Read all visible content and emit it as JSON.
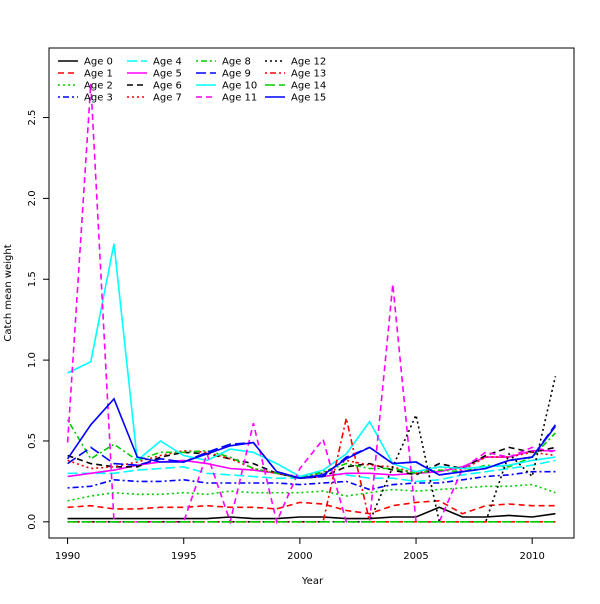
{
  "chart_data": {
    "type": "line",
    "title": "",
    "xlabel": "Year",
    "ylabel": "Catch mean weight",
    "xlim": [
      1989.2,
      2011.8
    ],
    "ylim": [
      -0.1,
      2.93
    ],
    "x_ticks": [
      1990,
      1995,
      2000,
      2005,
      2010
    ],
    "y_ticks": [
      0.0,
      0.5,
      1.0,
      1.5,
      2.0,
      2.5
    ],
    "y_tick_labels": [
      "0.0",
      "0.5",
      "1.0",
      "1.5",
      "2.0",
      "2.5"
    ],
    "grid": false,
    "legend": "top-left",
    "x": [
      1990,
      1991,
      1992,
      1993,
      1994,
      1995,
      1996,
      1997,
      1998,
      1999,
      2000,
      2001,
      2002,
      2003,
      2004,
      2005,
      2006,
      2007,
      2008,
      2009,
      2010,
      2011
    ],
    "series": [
      {
        "name": "Age 0",
        "color": "#000000",
        "dash": "solid",
        "values": [
          0.02,
          0.02,
          0.02,
          0.02,
          0.02,
          0.02,
          0.02,
          0.03,
          0.02,
          0.02,
          0.03,
          0.03,
          0.02,
          0.02,
          0.03,
          0.03,
          0.09,
          0.03,
          0.03,
          0.04,
          0.03,
          0.05
        ]
      },
      {
        "name": "Age 1",
        "color": "#ff0000",
        "dash": "dashed",
        "values": [
          0.09,
          0.1,
          0.08,
          0.08,
          0.09,
          0.09,
          0.1,
          0.09,
          0.09,
          0.08,
          0.12,
          0.11,
          0.07,
          0.05,
          0.1,
          0.12,
          0.13,
          0.05,
          0.1,
          0.11,
          0.1,
          0.1
        ]
      },
      {
        "name": "Age 2",
        "color": "#00cd00",
        "dash": "dotted",
        "values": [
          0.13,
          0.16,
          0.18,
          0.17,
          0.17,
          0.18,
          0.17,
          0.19,
          0.18,
          0.18,
          0.18,
          0.19,
          0.16,
          0.18,
          0.2,
          0.19,
          0.2,
          0.21,
          0.22,
          0.22,
          0.23,
          0.18
        ]
      },
      {
        "name": "Age 3",
        "color": "#0000ff",
        "dash": "dashdot",
        "values": [
          0.21,
          0.22,
          0.26,
          0.25,
          0.25,
          0.26,
          0.24,
          0.24,
          0.24,
          0.24,
          0.23,
          0.24,
          0.25,
          0.2,
          0.23,
          0.24,
          0.24,
          0.26,
          0.28,
          0.29,
          0.31,
          0.31
        ]
      },
      {
        "name": "Age 4",
        "color": "#00ffff",
        "dash": "longdash",
        "values": [
          0.3,
          0.3,
          0.3,
          0.32,
          0.33,
          0.34,
          0.3,
          0.29,
          0.28,
          0.27,
          0.27,
          0.3,
          0.29,
          0.27,
          0.27,
          0.25,
          0.26,
          0.29,
          0.31,
          0.33,
          0.35,
          0.38
        ]
      },
      {
        "name": "Age 5",
        "color": "#ff00ff",
        "dash": "solid",
        "values": [
          0.28,
          0.3,
          0.32,
          0.35,
          0.37,
          0.38,
          0.36,
          0.33,
          0.32,
          0.3,
          0.27,
          0.28,
          0.3,
          0.3,
          0.29,
          0.3,
          0.31,
          0.34,
          0.4,
          0.4,
          0.44,
          0.44
        ]
      },
      {
        "name": "Age 6",
        "color": "#000000",
        "dash": "dashed",
        "values": [
          0.41,
          0.36,
          0.34,
          0.34,
          0.4,
          0.43,
          0.42,
          0.39,
          0.36,
          0.3,
          0.27,
          0.28,
          0.34,
          0.36,
          0.32,
          0.29,
          0.36,
          0.33,
          0.41,
          0.46,
          0.43,
          0.46
        ]
      },
      {
        "name": "Age 7",
        "color": "#ff0000",
        "dash": "dotted",
        "values": [
          0.38,
          0.33,
          0.34,
          0.37,
          0.41,
          0.44,
          0.43,
          0.39,
          0.33,
          0.3,
          0.28,
          0.3,
          0.38,
          0.35,
          0.34,
          0.3,
          0.34,
          0.32,
          0.4,
          0.4,
          0.43,
          0.41
        ]
      },
      {
        "name": "Age 8",
        "color": "#00cd00",
        "dash": "dashdot",
        "values": [
          0.63,
          0.39,
          0.48,
          0.38,
          0.43,
          0.43,
          0.44,
          0.4,
          0.33,
          0.3,
          0.27,
          0.31,
          0.36,
          0.33,
          0.33,
          0.3,
          0.32,
          0.31,
          0.35,
          0.34,
          0.4,
          0.55
        ]
      },
      {
        "name": "Age 9",
        "color": "#0000ff",
        "dash": "longdash",
        "values": [
          0.36,
          0.46,
          0.36,
          0.35,
          0.39,
          0.37,
          0.43,
          0.48,
          0.49,
          0.31,
          0.27,
          0.28,
          0.4,
          0.46,
          0.36,
          0.37,
          0.29,
          0.31,
          0.33,
          0.38,
          0.4,
          0.6
        ]
      },
      {
        "name": "Age 10",
        "color": "#00ffff",
        "dash": "solid",
        "values": [
          0.92,
          0.99,
          1.72,
          0.38,
          0.5,
          0.41,
          0.38,
          0.45,
          0.43,
          0.36,
          0.28,
          0.32,
          0.42,
          0.62,
          0.36,
          0.31,
          0.34,
          0.33,
          0.34,
          0.35,
          0.38,
          0.4
        ]
      },
      {
        "name": "Age 11",
        "color": "#ff00ff",
        "dash": "dashed",
        "values": [
          0.49,
          2.71,
          0.0,
          0.0,
          0.0,
          0.0,
          0.42,
          0.0,
          0.61,
          0.0,
          0.33,
          0.51,
          0.0,
          0.0,
          1.47,
          0.0,
          0.0,
          0.33,
          0.43,
          0.4,
          0.46,
          0.43
        ]
      },
      {
        "name": "Age 12",
        "color": "#000000",
        "dash": "dotted",
        "values": [
          0.0,
          0.0,
          0.0,
          0.0,
          0.0,
          0.0,
          0.0,
          0.0,
          0.0,
          0.0,
          0.0,
          0.0,
          0.0,
          0.0,
          0.34,
          0.66,
          0.0,
          0.0,
          0.0,
          0.42,
          0.28,
          0.9
        ]
      },
      {
        "name": "Age 13",
        "color": "#ff0000",
        "dash": "dashdot",
        "values": [
          0.0,
          0.0,
          0.0,
          0.0,
          0.0,
          0.0,
          0.0,
          0.0,
          0.0,
          0.0,
          0.0,
          0.0,
          0.64,
          0.0,
          0.0,
          0.0,
          0.0,
          0.0,
          0.0,
          0.0,
          0.0,
          0.0
        ]
      },
      {
        "name": "Age 14",
        "color": "#00cd00",
        "dash": "longdash",
        "values": [
          0.0,
          0.0,
          0.0,
          0.0,
          0.0,
          0.0,
          0.0,
          0.0,
          0.0,
          0.0,
          0.0,
          0.0,
          0.0,
          0.0,
          0.0,
          0.0,
          0.0,
          0.0,
          0.0,
          0.0,
          0.0,
          0.0
        ]
      },
      {
        "name": "Age 15",
        "color": "#0000ff",
        "dash": "solid",
        "values": [
          0.39,
          0.6,
          0.76,
          0.4,
          0.37,
          0.37,
          0.42,
          0.47,
          0.49,
          0.31,
          0.27,
          0.29,
          0.39,
          0.46,
          0.36,
          0.37,
          0.29,
          0.31,
          0.33,
          0.38,
          0.4,
          0.59
        ]
      }
    ]
  }
}
